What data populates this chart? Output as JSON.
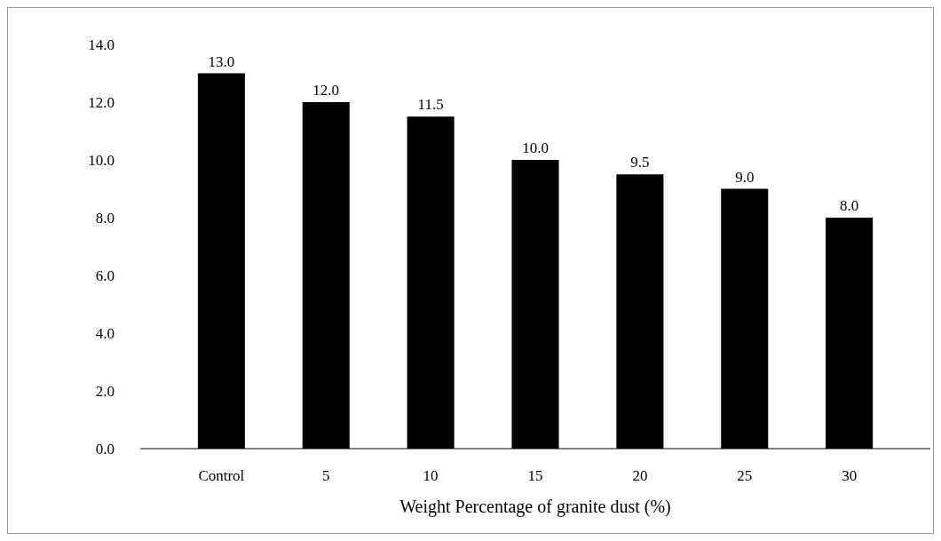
{
  "chart_data": {
    "type": "bar",
    "xlabel": "Weight Percentage of granite dust (%)",
    "categories": [
      "Control",
      "5",
      "10",
      "15",
      "20",
      "25",
      "30"
    ],
    "values": [
      13.0,
      12.0,
      11.5,
      10.0,
      9.5,
      9.0,
      8.0
    ],
    "value_labels": [
      "13.0",
      "12.0",
      "11.5",
      "10.0",
      "9.5",
      "9.0",
      "8.0"
    ],
    "color": "#000000",
    "ylim": [
      0,
      14
    ],
    "yticks": [
      {
        "value": 0,
        "label": "0.0"
      },
      {
        "value": 2,
        "label": "2.0"
      },
      {
        "value": 4,
        "label": "4.0"
      },
      {
        "value": 6,
        "label": "6.0"
      },
      {
        "value": 8,
        "label": "8.0"
      },
      {
        "value": 10,
        "label": "10.0"
      },
      {
        "value": 12,
        "label": "12.0"
      },
      {
        "value": 14,
        "label": "14.0"
      }
    ],
    "grid": false
  }
}
